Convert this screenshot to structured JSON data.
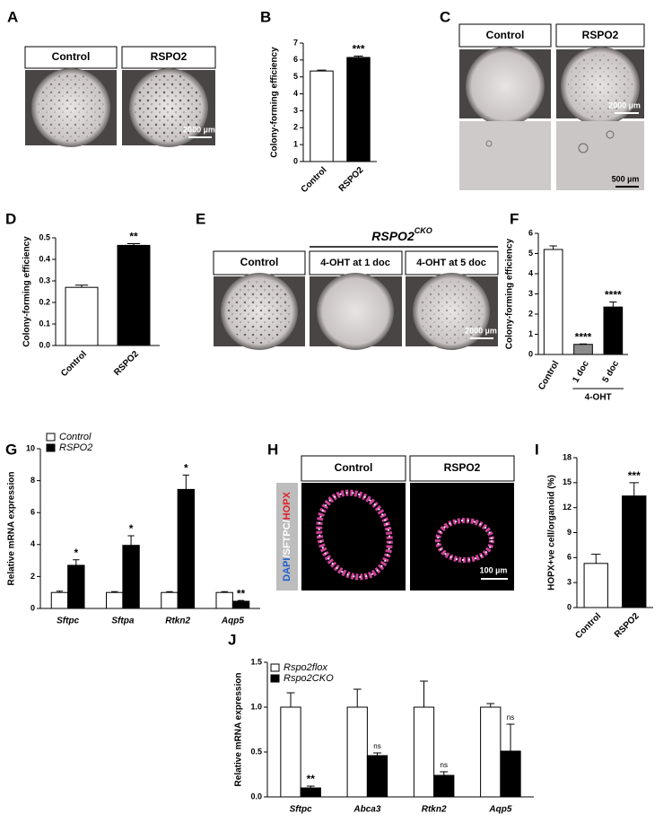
{
  "panel_letters": [
    "A",
    "B",
    "C",
    "D",
    "E",
    "F",
    "G",
    "H",
    "I",
    "J"
  ],
  "images": {
    "A": {
      "labels": [
        "Control",
        "RSPO2"
      ],
      "scale": "2000 µm"
    },
    "C": {
      "labels": [
        "Control",
        "RSPO2"
      ],
      "scales": [
        "2000 µm",
        "500 µm"
      ]
    },
    "E": {
      "header": [
        "RSPO2",
        "CKO"
      ],
      "labels": [
        "Control",
        "4-OHT at 1 doc",
        "4-OHT at 5 doc"
      ],
      "scale": "2000 µm"
    },
    "H": {
      "labels": [
        "Control",
        "RSPO2"
      ],
      "stain": [
        "DAPI",
        "/SFTPC/",
        "HOPX"
      ],
      "scale": "100 µm"
    }
  },
  "chart_data": [
    {
      "type": "bar",
      "ylabel": "Colony-forming efficiency",
      "categories": [
        "Control",
        "RSPO2"
      ],
      "series": [
        {
          "colors": [
            "#ffffff",
            "#000000"
          ],
          "values": [
            5.35,
            6.15
          ],
          "errors": [
            0.05,
            0.08
          ],
          "annotations": [
            null,
            "***"
          ]
        }
      ],
      "ylim": [
        0,
        7
      ],
      "yticks": [
        0,
        1,
        2,
        3,
        4,
        5,
        6,
        7
      ],
      "x_label_rotation": -45
    },
    {
      "type": "bar",
      "ylabel": "Colony-forming efficiency",
      "categories": [
        "Control",
        "RSPO2"
      ],
      "series": [
        {
          "colors": [
            "#ffffff",
            "#000000"
          ],
          "values": [
            0.27,
            0.465
          ],
          "errors": [
            0.01,
            0.008
          ],
          "annotations": [
            null,
            "**"
          ]
        }
      ],
      "ylim": [
        0,
        0.5
      ],
      "yticks": [
        {
          "value": 0,
          "label": "0.0"
        },
        0.1,
        0.2,
        0.3,
        0.4,
        0.5
      ],
      "x_label_rotation": -45
    },
    {
      "type": "bar",
      "ylabel": "Colony-forming efficiency",
      "xlabel": "4-OHT",
      "categories": [
        "Control",
        "1 doc",
        "5 doc"
      ],
      "series": [
        {
          "colors": [
            "#ffffff",
            "#8c8c8c",
            "#000000"
          ],
          "values": [
            5.2,
            0.5,
            2.35
          ],
          "errors": [
            0.18,
            0.02,
            0.25
          ],
          "annotations": [
            null,
            "****",
            "****"
          ]
        }
      ],
      "ylim": [
        0,
        6
      ],
      "yticks": [
        0,
        1,
        2,
        3,
        4,
        5,
        6
      ],
      "x_label_rotation": -60
    },
    {
      "type": "bar",
      "ylabel": "Relative mRNA expression",
      "categories": [
        "Sftpc",
        "Sftpa",
        "Rtkn2",
        "Aqp5"
      ],
      "category_style": "italic",
      "series": [
        {
          "name": "Control",
          "color": "#ffffff",
          "values": [
            1,
            1,
            1,
            1
          ],
          "errors": [
            0.08,
            0.05,
            0.05,
            0.05
          ],
          "annotations": [
            null,
            null,
            null,
            null
          ]
        },
        {
          "name": "RSPO2",
          "color": "#000000",
          "values": [
            2.7,
            3.95,
            7.45,
            0.45
          ],
          "errors": [
            0.35,
            0.6,
            0.9,
            0.05
          ],
          "annotations": [
            "*",
            "*",
            "*",
            "**"
          ]
        }
      ],
      "ylim": [
        0,
        10
      ],
      "yticks": [
        0,
        2,
        4,
        6,
        8,
        10
      ]
    },
    {
      "type": "bar",
      "ylabel": "HOPX+ve cell/organoid (%)",
      "categories": [
        "Control",
        "RSPO2"
      ],
      "series": [
        {
          "colors": [
            "#ffffff",
            "#000000"
          ],
          "values": [
            5.3,
            13.4
          ],
          "errors": [
            1.1,
            1.6
          ],
          "annotations": [
            null,
            "***"
          ]
        }
      ],
      "ylim": [
        0,
        18
      ],
      "yticks": [
        0,
        3,
        6,
        9,
        12,
        15,
        18
      ],
      "x_label_rotation": -45
    },
    {
      "type": "bar",
      "ylabel": "Relative mRNA expression",
      "categories": [
        "Sftpc",
        "Abca3",
        "Rtkn2",
        "Aqp5"
      ],
      "category_style": "italic",
      "series": [
        {
          "name": "Rspo2flox",
          "color": "#ffffff",
          "values": [
            1,
            1,
            1,
            1
          ],
          "errors": [
            0.16,
            0.2,
            0.29,
            0.04
          ],
          "annotations": [
            null,
            null,
            null,
            null
          ]
        },
        {
          "name": "Rspo2CKO",
          "color": "#000000",
          "values": [
            0.1,
            0.46,
            0.24,
            0.51
          ],
          "errors": [
            0.02,
            0.03,
            0.04,
            0.3
          ],
          "annotations": [
            "**",
            "ns",
            "ns",
            "ns"
          ]
        }
      ],
      "ylim": [
        0,
        1.5
      ],
      "yticks": [
        {
          "value": 0,
          "label": "0.0"
        },
        0.5,
        {
          "value": 1,
          "label": "1.0"
        },
        1.5
      ]
    }
  ]
}
